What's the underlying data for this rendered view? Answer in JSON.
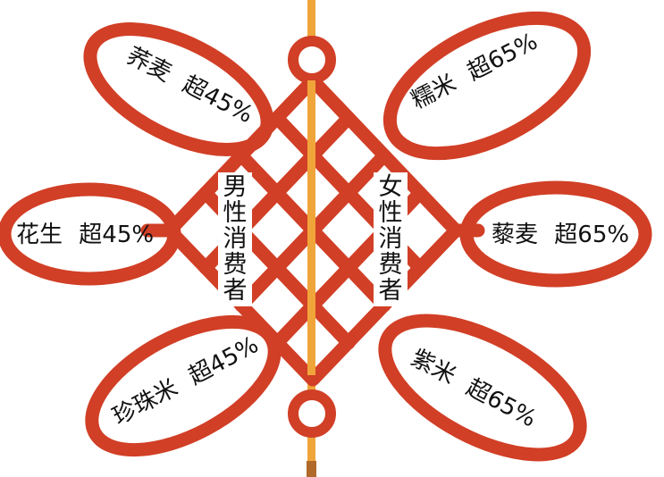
{
  "knot": {
    "rope_color": "#d13f26",
    "cord_color": "#f0a53a",
    "background": "#ffffff"
  },
  "groups": {
    "male": "男性消费者",
    "female": "女性消费者"
  },
  "loops": {
    "buckwheat": {
      "name": "荞麦",
      "value": "超45%"
    },
    "peanut": {
      "name": "花生",
      "value": "超45%"
    },
    "pearl_rice": {
      "name": "珍珠米",
      "value": "超45%"
    },
    "glutinous_rice": {
      "name": "糯米",
      "value": "超65%"
    },
    "quinoa": {
      "name": "藜麦",
      "value": "超65%"
    },
    "black_rice": {
      "name": "紫米",
      "value": "超65%"
    }
  }
}
